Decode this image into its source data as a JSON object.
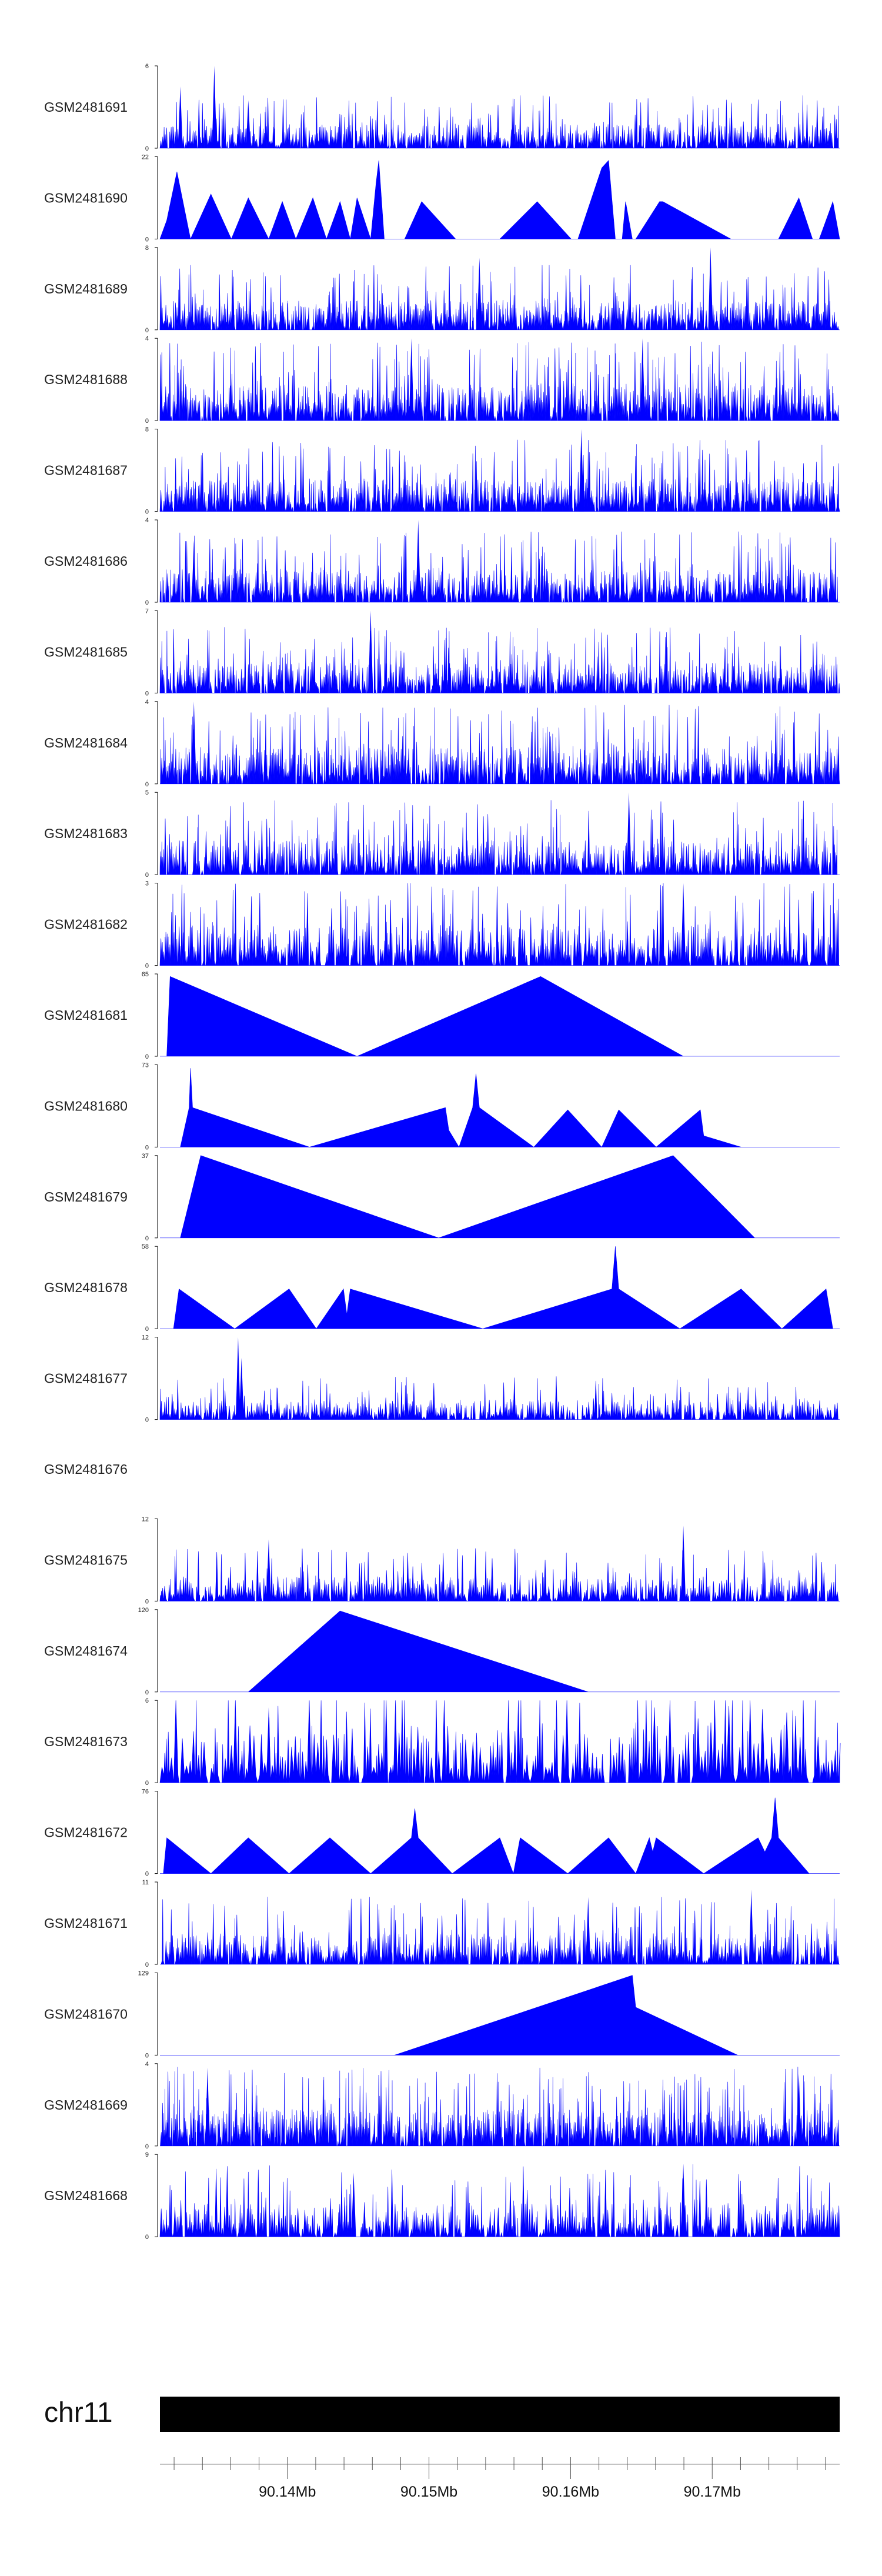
{
  "chart_data": {
    "type": "area",
    "title": "",
    "xlabel": "",
    "ylabel": "",
    "color": "#0000FF",
    "chromosome": {
      "name": "chr11",
      "bar_color": "#000000"
    },
    "x_range": [
      90.131,
      90.179
    ],
    "x_ticks": [
      {
        "value": 90.14,
        "label": "90.14Mb"
      },
      {
        "value": 90.15,
        "label": "90.15Mb"
      },
      {
        "value": 90.16,
        "label": "90.16Mb"
      },
      {
        "value": 90.17,
        "label": "90.17Mb"
      }
    ],
    "tracks": [
      {
        "name": "GSM2481691",
        "ymax": 6,
        "kind": "dense",
        "seed": 11,
        "step": 0.8,
        "avg": 1.1,
        "spikes": [
          [
            0.08,
            6
          ],
          [
            0.13,
            3.5
          ],
          [
            0.03,
            4.5
          ]
        ]
      },
      {
        "name": "GSM2481690",
        "ymax": 22,
        "kind": "peaks",
        "points": [
          [
            0,
            0
          ],
          [
            0.01,
            5
          ],
          [
            0.025,
            18
          ],
          [
            0.045,
            0
          ],
          [
            0.075,
            12
          ],
          [
            0.105,
            0
          ],
          [
            0.13,
            11
          ],
          [
            0.16,
            0
          ],
          [
            0.18,
            10
          ],
          [
            0.2,
            0
          ],
          [
            0.225,
            11
          ],
          [
            0.245,
            0
          ],
          [
            0.265,
            10
          ],
          [
            0.28,
            0
          ],
          [
            0.29,
            11
          ],
          [
            0.31,
            0
          ],
          [
            0.318,
            15
          ],
          [
            0.322,
            21
          ],
          [
            0.33,
            0
          ],
          [
            0.36,
            0
          ],
          [
            0.385,
            10
          ],
          [
            0.435,
            0
          ],
          [
            0.5,
            0
          ],
          [
            0.555,
            10
          ],
          [
            0.605,
            0
          ],
          [
            0.615,
            0
          ],
          [
            0.65,
            19
          ],
          [
            0.66,
            21
          ],
          [
            0.67,
            0
          ],
          [
            0.68,
            0
          ],
          [
            0.685,
            10
          ],
          [
            0.695,
            0
          ],
          [
            0.7,
            0
          ],
          [
            0.735,
            10
          ],
          [
            0.74,
            10
          ],
          [
            0.84,
            0
          ],
          [
            0.87,
            0
          ],
          [
            0.91,
            0
          ],
          [
            0.94,
            11
          ],
          [
            0.96,
            0
          ],
          [
            0.97,
            0
          ],
          [
            0.99,
            10
          ],
          [
            1,
            0
          ]
        ]
      },
      {
        "name": "GSM2481689",
        "ymax": 8,
        "kind": "dense",
        "seed": 23,
        "step": 0.7,
        "avg": 1.8,
        "spikes": [
          [
            0.47,
            7
          ],
          [
            0.81,
            8
          ]
        ]
      },
      {
        "name": "GSM2481688",
        "ymax": 4,
        "kind": "dense",
        "seed": 37,
        "step": 0.7,
        "avg": 1.1,
        "spikes": [
          [
            0.37,
            4
          ],
          [
            0.71,
            4
          ]
        ]
      },
      {
        "name": "GSM2481687",
        "ymax": 8,
        "kind": "dense",
        "seed": 41,
        "step": 0.7,
        "avg": 2.0,
        "spikes": [
          [
            0.62,
            8
          ]
        ]
      },
      {
        "name": "GSM2481686",
        "ymax": 4,
        "kind": "dense",
        "seed": 53,
        "step": 0.7,
        "avg": 1.0,
        "spikes": [
          [
            0.38,
            4
          ],
          [
            0.05,
            3
          ]
        ]
      },
      {
        "name": "GSM2481685",
        "ymax": 7,
        "kind": "dense",
        "seed": 67,
        "step": 0.7,
        "avg": 1.6,
        "spikes": [
          [
            0.31,
            7
          ]
        ]
      },
      {
        "name": "GSM2481684",
        "ymax": 4,
        "kind": "dense",
        "seed": 71,
        "step": 0.7,
        "avg": 1.1,
        "spikes": [
          [
            0.05,
            4
          ]
        ]
      },
      {
        "name": "GSM2481683",
        "ymax": 5,
        "kind": "dense",
        "seed": 83,
        "step": 0.8,
        "avg": 1.3,
        "spikes": [
          [
            0.69,
            5
          ]
        ]
      },
      {
        "name": "GSM2481682",
        "ymax": 3,
        "kind": "dense",
        "seed": 97,
        "step": 0.9,
        "avg": 0.9,
        "spikes": [
          [
            0.77,
            3
          ]
        ]
      },
      {
        "name": "GSM2481681",
        "ymax": 65,
        "kind": "peaks",
        "points": [
          [
            0,
            0
          ],
          [
            0.01,
            0
          ],
          [
            0.015,
            63
          ],
          [
            0.29,
            0
          ],
          [
            0.56,
            63
          ],
          [
            0.77,
            0
          ],
          [
            1,
            0
          ]
        ]
      },
      {
        "name": "GSM2481680",
        "ymax": 73,
        "kind": "peaks",
        "points": [
          [
            0,
            0
          ],
          [
            0.03,
            0
          ],
          [
            0.043,
            35
          ],
          [
            0.045,
            70
          ],
          [
            0.048,
            35
          ],
          [
            0.22,
            0
          ],
          [
            0.42,
            35
          ],
          [
            0.425,
            15
          ],
          [
            0.44,
            0
          ],
          [
            0.46,
            35
          ],
          [
            0.465,
            65
          ],
          [
            0.47,
            35
          ],
          [
            0.55,
            0
          ],
          [
            0.6,
            33
          ],
          [
            0.65,
            0
          ],
          [
            0.675,
            33
          ],
          [
            0.73,
            0
          ],
          [
            0.795,
            33
          ],
          [
            0.8,
            10
          ],
          [
            0.855,
            0
          ],
          [
            1,
            0
          ]
        ]
      },
      {
        "name": "GSM2481679",
        "ymax": 37,
        "kind": "peaks",
        "points": [
          [
            0,
            0
          ],
          [
            0.03,
            0
          ],
          [
            0.06,
            37
          ],
          [
            0.41,
            0
          ],
          [
            0.755,
            37
          ],
          [
            0.875,
            0
          ],
          [
            1,
            0
          ]
        ]
      },
      {
        "name": "GSM2481678",
        "ymax": 58,
        "kind": "peaks",
        "points": [
          [
            0,
            0
          ],
          [
            0.02,
            0
          ],
          [
            0.028,
            28
          ],
          [
            0.11,
            0
          ],
          [
            0.19,
            28
          ],
          [
            0.23,
            0
          ],
          [
            0.27,
            28
          ],
          [
            0.275,
            10
          ],
          [
            0.28,
            28
          ],
          [
            0.475,
            0
          ],
          [
            0.665,
            28
          ],
          [
            0.67,
            58
          ],
          [
            0.675,
            28
          ],
          [
            0.765,
            0
          ],
          [
            0.855,
            28
          ],
          [
            0.915,
            0
          ],
          [
            0.98,
            28
          ],
          [
            0.99,
            0
          ],
          [
            1,
            0
          ]
        ]
      },
      {
        "name": "GSM2481677",
        "ymax": 12,
        "kind": "dense",
        "seed": 101,
        "step": 0.9,
        "avg": 1.8,
        "spikes": [
          [
            0.115,
            12
          ],
          [
            0.12,
            9
          ]
        ]
      },
      {
        "name": "GSM2481676",
        "ymax": null,
        "kind": "empty"
      },
      {
        "name": "GSM2481675",
        "ymax": 12,
        "kind": "dense",
        "seed": 113,
        "step": 1.0,
        "avg": 2.2,
        "spikes": [
          [
            0.16,
            9
          ],
          [
            0.77,
            11
          ]
        ]
      },
      {
        "name": "GSM2481674",
        "ymax": 120,
        "kind": "peaks",
        "points": [
          [
            0,
            0
          ],
          [
            0.13,
            0
          ],
          [
            0.265,
            118
          ],
          [
            0.63,
            0
          ],
          [
            1,
            0
          ]
        ]
      },
      {
        "name": "GSM2481673",
        "ymax": 6,
        "kind": "dense",
        "seed": 127,
        "step": 1.7,
        "avg": 2.8,
        "spikes": [
          [
            0.16,
            5.5
          ]
        ]
      },
      {
        "name": "GSM2481672",
        "ymax": 76,
        "kind": "peaks",
        "points": [
          [
            0,
            0
          ],
          [
            0.005,
            0
          ],
          [
            0.01,
            33
          ],
          [
            0.075,
            0
          ],
          [
            0.13,
            33
          ],
          [
            0.19,
            0
          ],
          [
            0.25,
            33
          ],
          [
            0.31,
            0
          ],
          [
            0.37,
            33
          ],
          [
            0.375,
            60
          ],
          [
            0.38,
            33
          ],
          [
            0.43,
            0
          ],
          [
            0.5,
            33
          ],
          [
            0.52,
            0
          ],
          [
            0.53,
            33
          ],
          [
            0.6,
            0
          ],
          [
            0.66,
            33
          ],
          [
            0.7,
            0
          ],
          [
            0.72,
            33
          ],
          [
            0.725,
            20
          ],
          [
            0.73,
            33
          ],
          [
            0.8,
            0
          ],
          [
            0.88,
            33
          ],
          [
            0.89,
            20
          ],
          [
            0.9,
            33
          ],
          [
            0.905,
            70
          ],
          [
            0.91,
            33
          ],
          [
            0.955,
            0
          ],
          [
            1,
            0
          ]
        ]
      },
      {
        "name": "GSM2481671",
        "ymax": 11,
        "kind": "dense",
        "seed": 139,
        "step": 0.9,
        "avg": 2.6,
        "spikes": [
          [
            0.63,
            9
          ],
          [
            0.87,
            10
          ]
        ]
      },
      {
        "name": "GSM2481670",
        "ymax": 129,
        "kind": "peaks",
        "points": [
          [
            0,
            0
          ],
          [
            0.345,
            0
          ],
          [
            0.695,
            125
          ],
          [
            0.7,
            75
          ],
          [
            0.85,
            0
          ],
          [
            1,
            0
          ]
        ]
      },
      {
        "name": "GSM2481669",
        "ymax": 4,
        "kind": "dense",
        "seed": 149,
        "step": 0.6,
        "avg": 1.1,
        "spikes": [
          [
            0.94,
            3.5
          ],
          [
            0.07,
            3.8
          ]
        ]
      },
      {
        "name": "GSM2481668",
        "ymax": 9,
        "kind": "dense",
        "seed": 163,
        "step": 1.0,
        "avg": 2.3,
        "spikes": [
          [
            0.285,
            7
          ],
          [
            0.77,
            8
          ]
        ]
      }
    ]
  }
}
